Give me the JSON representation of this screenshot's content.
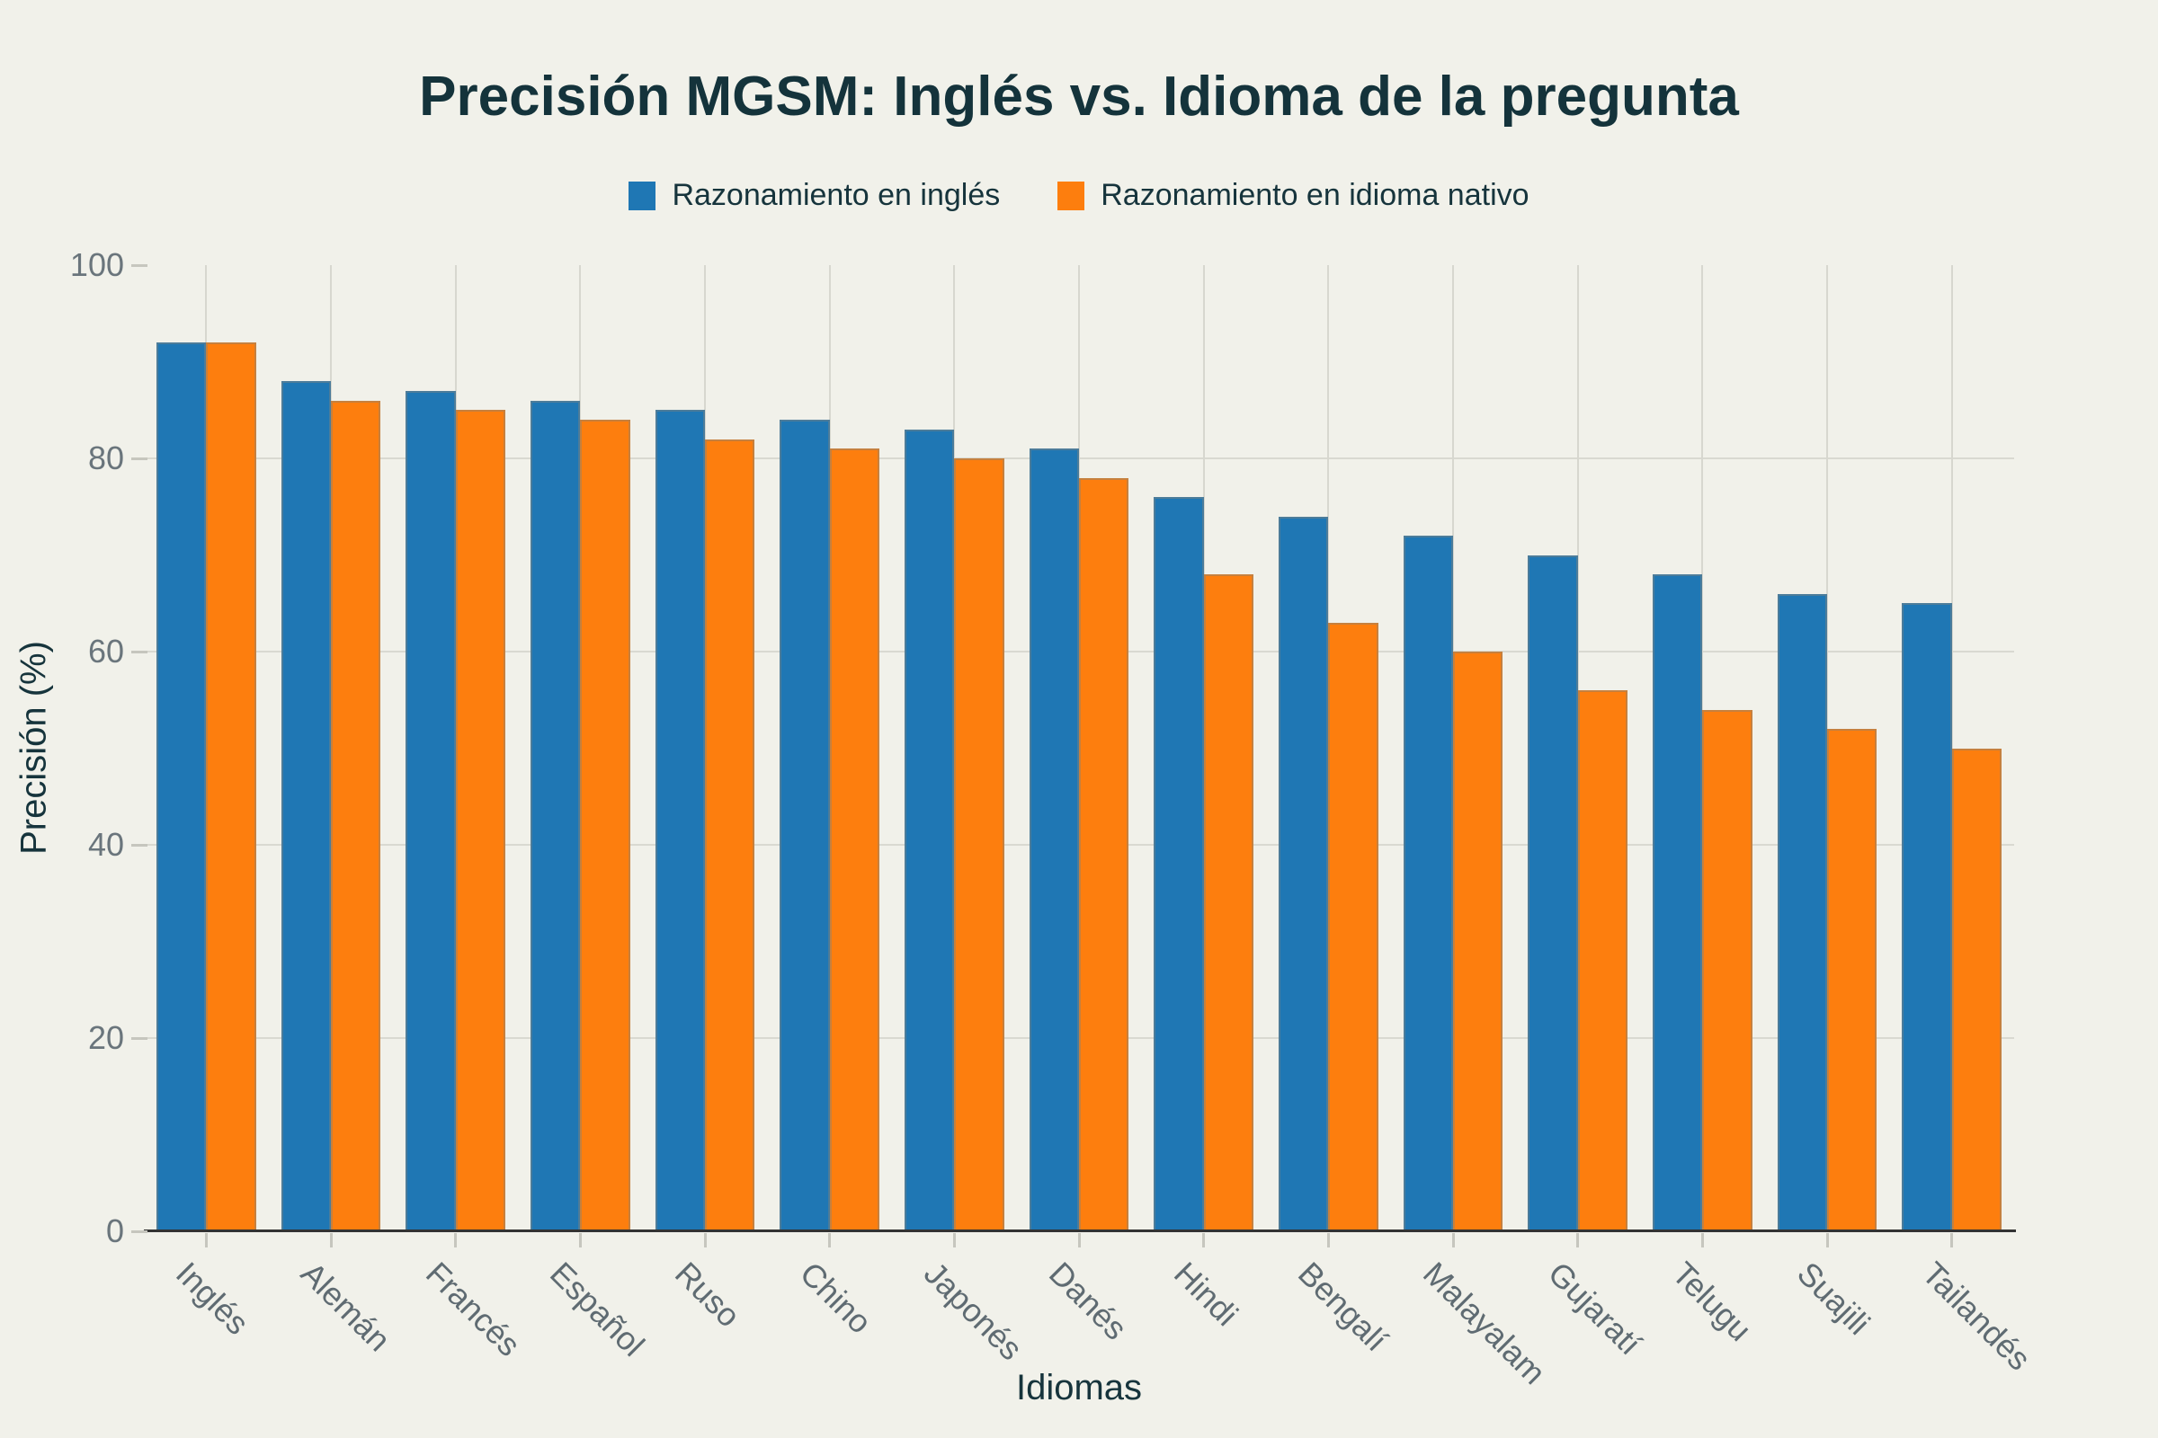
{
  "title": "Precisión MGSM: Inglés vs. Idioma de la pregunta",
  "legend": [
    {
      "label": "Razonamiento en inglés",
      "color": "#1f77b4"
    },
    {
      "label": "Razonamiento en idioma nativo",
      "color": "#fd7e0e"
    }
  ],
  "colors": {
    "background": "#f1f1ea",
    "blue_series": "#1f77b4",
    "orange_series": "#fd7e0e",
    "title_text": "#14333b",
    "tick_text": "#6a757c",
    "gridline": "#d9d9d1",
    "axis_spine": "#333333"
  },
  "chart_data": {
    "type": "bar",
    "title": "Precisión MGSM: Inglés vs. Idioma de la pregunta",
    "xlabel": "Idiomas",
    "ylabel": "Precisión (%)",
    "ylim": [
      0,
      100
    ],
    "yticks": [
      0,
      20,
      40,
      60,
      80,
      100
    ],
    "grid": true,
    "legend_position": "top-center",
    "categories": [
      "Inglés",
      "Alemán",
      "Francés",
      "Español",
      "Ruso",
      "Chino",
      "Japonés",
      "Danés",
      "Hindi",
      "Bengalí",
      "Malayalam",
      "Gujaratí",
      "Telugu",
      "Suajili",
      "Tailandés"
    ],
    "series": [
      {
        "name": "Razonamiento en inglés",
        "color": "#1f77b4",
        "values": [
          92,
          88,
          87,
          86,
          85,
          84,
          83,
          81,
          76,
          74,
          72,
          70,
          68,
          66,
          65
        ]
      },
      {
        "name": "Razonamiento en idioma nativo",
        "color": "#fd7e0e",
        "values": [
          92,
          86,
          85,
          84,
          82,
          81,
          80,
          78,
          68,
          63,
          60,
          56,
          54,
          52,
          50
        ]
      }
    ]
  }
}
